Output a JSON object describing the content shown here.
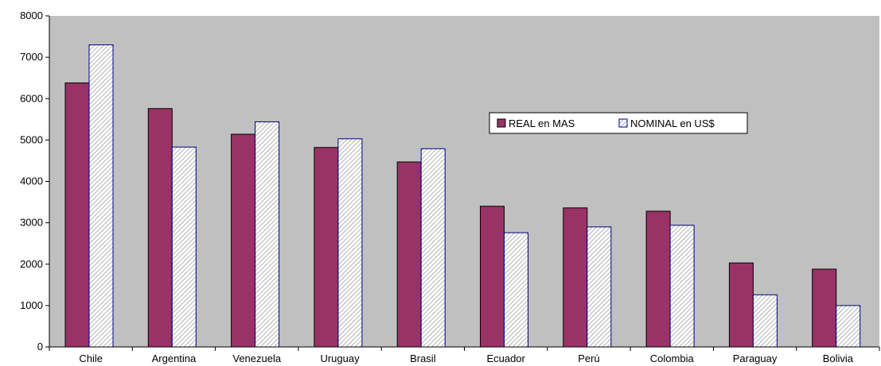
{
  "chart_data": {
    "type": "bar",
    "categories": [
      "Chile",
      "Argentina",
      "Venezuela",
      "Uruguay",
      "Brasil",
      "Ecuador",
      "Perú",
      "Colombia",
      "Paraguay",
      "Bolivia"
    ],
    "series": [
      {
        "name": "REAL en MAS",
        "values": [
          6380,
          5760,
          5140,
          4820,
          4470,
          3400,
          3360,
          3280,
          2030,
          1880
        ],
        "color": "#993366"
      },
      {
        "name": "NOMINAL en US$",
        "values": [
          7300,
          4830,
          5440,
          5030,
          4790,
          2760,
          2900,
          2940,
          1260,
          1000
        ],
        "color": "#ffffff",
        "pattern": "diagonal-hatch"
      }
    ],
    "y_ticks": [
      "0",
      "1000",
      "2000",
      "3000",
      "4000",
      "5000",
      "6000",
      "7000",
      "8000"
    ],
    "ylim": [
      0,
      8000
    ],
    "plot_background": "#c0c0c0",
    "grid": false,
    "legend_position": "center-right"
  }
}
